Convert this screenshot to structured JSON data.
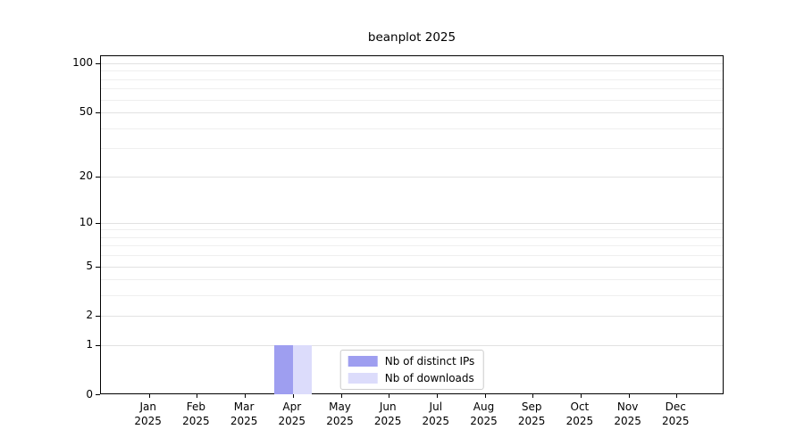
{
  "chart_data": {
    "type": "bar",
    "title": "beanplot 2025",
    "x": {
      "months": [
        "Jan",
        "Feb",
        "Mar",
        "Apr",
        "May",
        "Jun",
        "Jul",
        "Aug",
        "Sep",
        "Oct",
        "Nov",
        "Dec"
      ],
      "year": "2025"
    },
    "y_axis": {
      "scale": "log1p",
      "major_ticks": [
        0,
        1,
        2,
        5,
        10,
        20,
        50,
        100
      ],
      "major_gridlines": [
        1,
        2,
        5,
        10,
        20,
        50,
        100
      ],
      "minor_gridlines": [
        3,
        4,
        6,
        7,
        8,
        9,
        30,
        40,
        60,
        70,
        80,
        90
      ],
      "ylim": [
        0,
        100
      ],
      "grid": true
    },
    "series": [
      {
        "name": "Nb of distinct IPs",
        "color": "#9e9ef0",
        "values": [
          0,
          0,
          0,
          1,
          0,
          0,
          0,
          0,
          0,
          0,
          0,
          0
        ]
      },
      {
        "name": "Nb of downloads",
        "color": "#dcdcfb",
        "values": [
          0,
          0,
          0,
          1,
          0,
          0,
          0,
          0,
          0,
          0,
          0,
          0
        ]
      }
    ],
    "legend": {
      "position": "bottom-center"
    }
  },
  "colors": {
    "axis": "#000000",
    "background": "#ffffff",
    "grid_major": "#e2e2e2",
    "grid_minor": "#efefef",
    "legend_border": "#cccccc"
  }
}
